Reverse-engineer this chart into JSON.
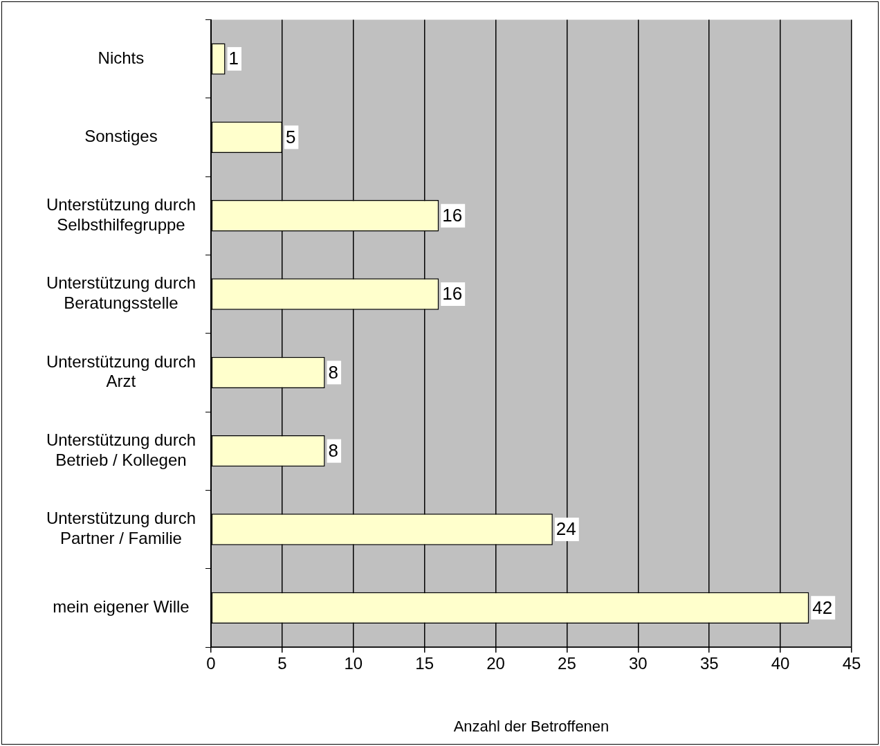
{
  "chart_data": {
    "type": "bar",
    "orientation": "horizontal",
    "xlabel": "Anzahl der Betroffenen",
    "categories": [
      "Nichts",
      "Sonstiges",
      "Unterstützung durch Selbsthilfegruppe",
      "Unterstützung durch Beratungsstelle",
      "Unterstützung durch Arzt",
      "Unterstützung durch Betrieb / Kollegen",
      "Unterstützung durch Partner / Familie",
      "mein eigener Wille"
    ],
    "values": [
      1,
      5,
      16,
      16,
      8,
      8,
      24,
      42
    ],
    "color": "#ffffcc",
    "xlim": [
      0,
      45
    ],
    "xticks": [
      0,
      5,
      10,
      15,
      20,
      25,
      30,
      35,
      40,
      45
    ],
    "grid": "x",
    "data_labels": true,
    "legend": false
  }
}
